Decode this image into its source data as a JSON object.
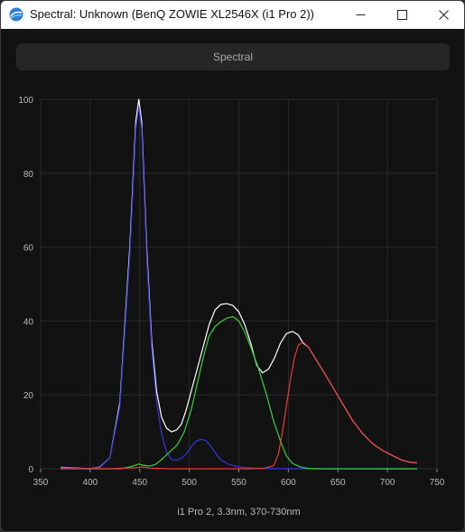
{
  "window": {
    "title": "Spectral: Unknown (BenQ ZOWIE XL2546X (i1 Pro 2))",
    "icon": "spectral-app-icon",
    "background": "#121212"
  },
  "tab": {
    "label": "Spectral"
  },
  "chart_data": {
    "type": "line",
    "caption": "i1 Pro 2, 3.3nm, 370-730nm",
    "xlim": [
      350,
      750
    ],
    "ylim": [
      0,
      100
    ],
    "xticks": [
      350,
      400,
      450,
      500,
      550,
      600,
      650,
      700,
      750
    ],
    "yticks": [
      0,
      20,
      40,
      60,
      80,
      100
    ],
    "grid": true,
    "series": [
      {
        "color": "#ffffff",
        "points": [
          [
            370,
            0.4
          ],
          [
            400,
            0
          ],
          [
            410,
            0.5
          ],
          [
            420,
            3
          ],
          [
            430,
            18
          ],
          [
            440,
            60
          ],
          [
            446,
            94
          ],
          [
            449,
            100
          ],
          [
            452,
            94
          ],
          [
            457,
            60
          ],
          [
            462,
            35
          ],
          [
            467,
            21
          ],
          [
            472,
            14
          ],
          [
            477,
            11
          ],
          [
            482,
            10
          ],
          [
            487,
            10.5
          ],
          [
            492,
            12
          ],
          [
            497,
            16
          ],
          [
            502,
            21
          ],
          [
            508,
            27
          ],
          [
            514,
            33
          ],
          [
            520,
            39
          ],
          [
            526,
            43
          ],
          [
            532,
            44.5
          ],
          [
            538,
            44.7
          ],
          [
            544,
            44.2
          ],
          [
            550,
            42.5
          ],
          [
            556,
            39
          ],
          [
            562,
            34
          ],
          [
            568,
            28
          ],
          [
            574,
            26
          ],
          [
            580,
            27
          ],
          [
            586,
            30
          ],
          [
            592,
            34
          ],
          [
            598,
            36.6
          ],
          [
            604,
            37.2
          ],
          [
            610,
            36.2
          ],
          [
            615,
            34
          ],
          [
            620,
            33
          ],
          [
            627,
            30
          ],
          [
            635,
            26.5
          ],
          [
            645,
            22
          ],
          [
            655,
            17.5
          ],
          [
            665,
            13
          ],
          [
            675,
            9.5
          ],
          [
            685,
            6.8
          ],
          [
            695,
            5
          ],
          [
            705,
            3.6
          ],
          [
            715,
            2.3
          ],
          [
            722,
            1.8
          ],
          [
            730,
            1.6
          ]
        ]
      },
      {
        "color": "#3535e0",
        "points": [
          [
            370,
            0.3
          ],
          [
            400,
            0
          ],
          [
            410,
            0.4
          ],
          [
            420,
            3
          ],
          [
            430,
            17
          ],
          [
            440,
            58
          ],
          [
            446,
            92
          ],
          [
            449,
            98
          ],
          [
            452,
            92
          ],
          [
            457,
            58
          ],
          [
            462,
            33
          ],
          [
            467,
            18
          ],
          [
            472,
            9.5
          ],
          [
            477,
            4.5
          ],
          [
            482,
            2.5
          ],
          [
            487,
            2.3
          ],
          [
            492,
            2.8
          ],
          [
            497,
            4
          ],
          [
            502,
            6
          ],
          [
            507,
            7.5
          ],
          [
            512,
            8
          ],
          [
            517,
            7.6
          ],
          [
            522,
            6
          ],
          [
            527,
            4
          ],
          [
            532,
            2.4
          ],
          [
            540,
            1.2
          ],
          [
            550,
            0.5
          ],
          [
            565,
            0.2
          ],
          [
            580,
            0.1
          ],
          [
            600,
            0
          ],
          [
            730,
            0
          ]
        ]
      },
      {
        "color": "#3ad13a",
        "points": [
          [
            370,
            0
          ],
          [
            420,
            0
          ],
          [
            430,
            0
          ],
          [
            440,
            0.5
          ],
          [
            445,
            0.9
          ],
          [
            449,
            1.3
          ],
          [
            453,
            1
          ],
          [
            460,
            0.7
          ],
          [
            466,
            1.2
          ],
          [
            472,
            2.5
          ],
          [
            480,
            4.5
          ],
          [
            488,
            6.5
          ],
          [
            495,
            10
          ],
          [
            502,
            16
          ],
          [
            508,
            23
          ],
          [
            514,
            30
          ],
          [
            520,
            36
          ],
          [
            526,
            38.5
          ],
          [
            532,
            39.8
          ],
          [
            538,
            40.8
          ],
          [
            544,
            41.2
          ],
          [
            550,
            40
          ],
          [
            556,
            37
          ],
          [
            562,
            33
          ],
          [
            570,
            27
          ],
          [
            578,
            20
          ],
          [
            585,
            13
          ],
          [
            592,
            7.5
          ],
          [
            598,
            3.5
          ],
          [
            604,
            1.5
          ],
          [
            612,
            0.5
          ],
          [
            620,
            0.1
          ],
          [
            630,
            0
          ],
          [
            730,
            0
          ]
        ]
      },
      {
        "color": "#e83a3a",
        "points": [
          [
            370,
            0
          ],
          [
            420,
            0
          ],
          [
            445,
            0.3
          ],
          [
            452,
            0.5
          ],
          [
            460,
            0.2
          ],
          [
            480,
            0
          ],
          [
            560,
            0
          ],
          [
            575,
            0.1
          ],
          [
            585,
            0.8
          ],
          [
            590,
            4
          ],
          [
            594,
            10
          ],
          [
            598,
            17
          ],
          [
            602,
            24
          ],
          [
            606,
            30
          ],
          [
            610,
            33.5
          ],
          [
            615,
            34.3
          ],
          [
            620,
            33
          ],
          [
            627,
            30
          ],
          [
            635,
            26.5
          ],
          [
            645,
            22
          ],
          [
            655,
            17.5
          ],
          [
            665,
            13
          ],
          [
            675,
            9.5
          ],
          [
            685,
            6.8
          ],
          [
            695,
            5
          ],
          [
            705,
            3.6
          ],
          [
            715,
            2.3
          ],
          [
            722,
            1.8
          ],
          [
            730,
            1.6
          ]
        ]
      }
    ]
  }
}
